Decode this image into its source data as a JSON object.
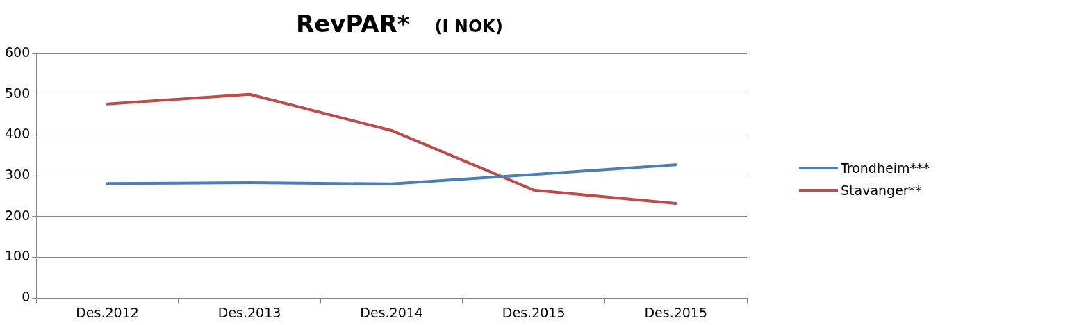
{
  "chart_data": {
    "type": "line",
    "title": "RevPAR*",
    "subtitle": "(I NOK)",
    "categories": [
      "Des.2012",
      "Des.2013",
      "Des.2014",
      "Des.2015",
      "Des.2015"
    ],
    "series": [
      {
        "name": "Trondheim***",
        "color": "#4a7ebb",
        "values": [
          281,
          283,
          280,
          303,
          327
        ]
      },
      {
        "name": "Stavanger**",
        "color": "#be4b48",
        "values": [
          476,
          500,
          411,
          265,
          232
        ]
      }
    ],
    "ylim": [
      0,
      600
    ],
    "yticks": [
      0,
      100,
      200,
      300,
      400,
      500,
      600
    ],
    "grid": "y",
    "legend": "right",
    "marker": "none",
    "line_style": "solid"
  }
}
